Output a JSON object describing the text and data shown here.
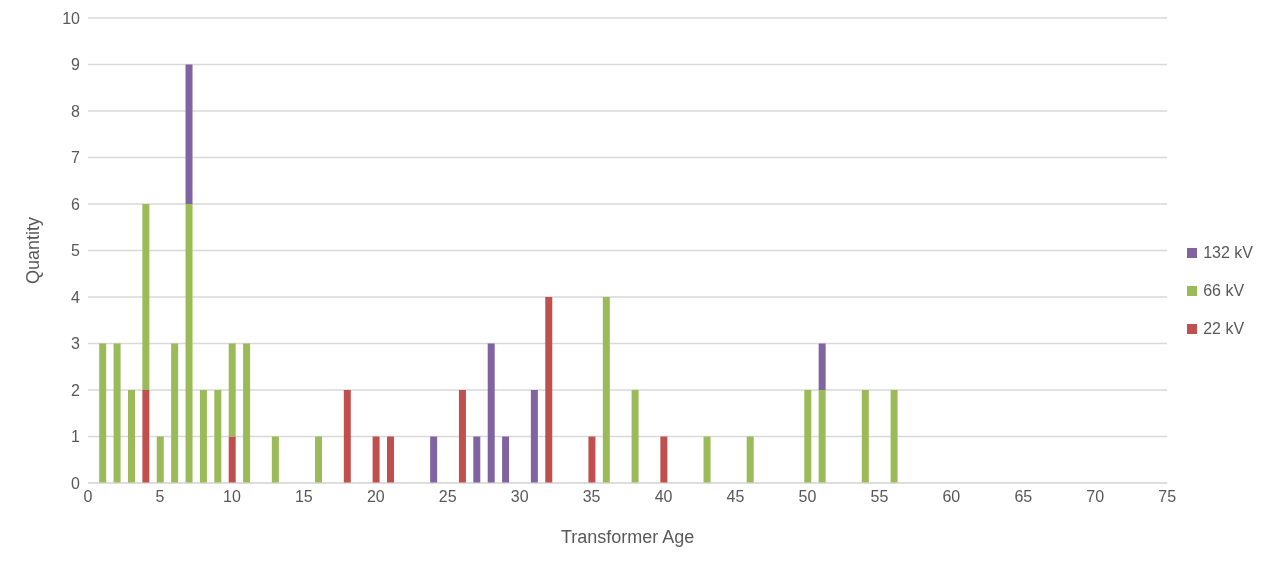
{
  "chart_data": {
    "type": "bar",
    "stacked": true,
    "xlabel": "Transformer Age",
    "ylabel": "Quantity",
    "x": [
      1,
      2,
      3,
      4,
      5,
      6,
      7,
      8,
      9,
      10,
      11,
      13,
      16,
      18,
      20,
      21,
      24,
      26,
      27,
      28,
      29,
      31,
      32,
      35,
      36,
      38,
      40,
      43,
      46,
      50,
      51,
      54,
      56
    ],
    "series": [
      {
        "name": "22 kV",
        "color": "#c0504d",
        "values": [
          null,
          null,
          null,
          2,
          null,
          null,
          null,
          null,
          null,
          1,
          null,
          null,
          null,
          2,
          1,
          1,
          null,
          2,
          null,
          null,
          null,
          null,
          4,
          1,
          null,
          null,
          1,
          null,
          null,
          null,
          null,
          null,
          null
        ]
      },
      {
        "name": "66 kV",
        "color": "#9bbb59",
        "values": [
          3,
          3,
          2,
          4,
          1,
          3,
          6,
          2,
          2,
          2,
          3,
          1,
          1,
          null,
          null,
          null,
          null,
          null,
          null,
          null,
          null,
          null,
          null,
          null,
          4,
          2,
          null,
          1,
          1,
          2,
          2,
          2,
          2
        ]
      },
      {
        "name": "132 kV",
        "color": "#8064a2",
        "values": [
          null,
          null,
          null,
          null,
          null,
          null,
          3,
          null,
          null,
          null,
          null,
          null,
          null,
          null,
          null,
          null,
          1,
          null,
          1,
          3,
          1,
          2,
          null,
          null,
          null,
          null,
          null,
          null,
          null,
          null,
          1,
          null,
          null
        ]
      }
    ],
    "xlim": [
      0,
      75
    ],
    "xticks": [
      0,
      5,
      10,
      15,
      20,
      25,
      30,
      35,
      40,
      45,
      50,
      55,
      60,
      65,
      70,
      75
    ],
    "ylim": [
      0,
      10
    ],
    "yticks": [
      0,
      1,
      2,
      3,
      4,
      5,
      6,
      7,
      8,
      9,
      10
    ],
    "grid": "y",
    "legend": "right"
  }
}
